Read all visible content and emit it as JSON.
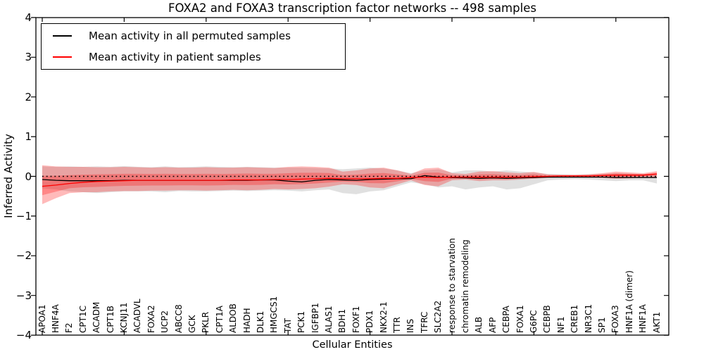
{
  "title": "FOXA2 and FOXA3 transcription factor networks -- 498 samples",
  "legend": {
    "items": [
      {
        "label": "Mean activity in all permuted samples",
        "color": "#000000"
      },
      {
        "label": "Mean activity in patient samples",
        "color": "#ff0000"
      }
    ]
  },
  "axes": {
    "ylabel": "Inferred Activity",
    "xlabel": "Cellular Entities",
    "yticks": [
      "4",
      "3",
      "2",
      "1",
      "0",
      "−1",
      "−2",
      "−3",
      "−4"
    ],
    "ylim": [
      -4,
      4
    ]
  },
  "colors": {
    "background": "#ffffff",
    "axis": "#000000",
    "zero_line": "#000000"
  },
  "chart_data": {
    "type": "line",
    "title": "FOXA2 and FOXA3 transcription factor networks -- 498 samples",
    "xlabel": "Cellular Entities",
    "ylabel": "Inferred Activity",
    "ylim": [
      -4,
      4
    ],
    "grid": false,
    "legend_position": "upper left",
    "zero_reference_line": 0,
    "categories": [
      "APOA1",
      "HNF4A",
      "F2",
      "CPT1C",
      "ACADM",
      "CPT1B",
      "KCNJ11",
      "ACADVL",
      "FOXA2",
      "UCP2",
      "ABCC8",
      "GCK",
      "PKLR",
      "CPT1A",
      "ALDOB",
      "HADH",
      "DLK1",
      "HMGCS1",
      "TAT",
      "PCK1",
      "IGFBP1",
      "ALAS1",
      "BDH1",
      "FOXF1",
      "PDX1",
      "NKX2-1",
      "TTR",
      "INS",
      "TFRC",
      "SLC2A2",
      "response to starvation",
      "chromatin remodeling",
      "ALB",
      "AFP",
      "CEBPA",
      "FOXA1",
      "G6PC",
      "CEBPB",
      "NF1",
      "CREB1",
      "NR3C1",
      "SP1",
      "FOXA3",
      "HNF1A (dimer)",
      "HNF1A",
      "AKT1"
    ],
    "series": [
      {
        "name": "Mean activity in all permuted samples",
        "color": "#000000",
        "style": "solid",
        "values": [
          -0.08,
          -0.1,
          -0.11,
          -0.11,
          -0.11,
          -0.11,
          -0.1,
          -0.1,
          -0.1,
          -0.1,
          -0.1,
          -0.1,
          -0.1,
          -0.1,
          -0.1,
          -0.1,
          -0.09,
          -0.09,
          -0.12,
          -0.14,
          -0.1,
          -0.08,
          -0.09,
          -0.1,
          -0.08,
          -0.07,
          -0.06,
          -0.06,
          0.02,
          -0.02,
          -0.03,
          -0.04,
          -0.05,
          -0.04,
          -0.05,
          -0.04,
          -0.03,
          -0.02,
          -0.02,
          -0.02,
          -0.02,
          -0.02,
          -0.03,
          -0.03,
          -0.03,
          -0.03
        ]
      },
      {
        "name": "Mean activity in patient samples",
        "color": "#ff0000",
        "style": "solid",
        "values": [
          -0.25,
          -0.22,
          -0.18,
          -0.15,
          -0.13,
          -0.12,
          -0.11,
          -0.1,
          -0.1,
          -0.1,
          -0.1,
          -0.1,
          -0.1,
          -0.1,
          -0.09,
          -0.09,
          -0.09,
          -0.08,
          -0.08,
          -0.07,
          -0.06,
          -0.05,
          -0.06,
          -0.06,
          -0.06,
          -0.05,
          -0.05,
          -0.03,
          -0.02,
          -0.03,
          -0.02,
          -0.02,
          -0.02,
          -0.02,
          -0.02,
          -0.02,
          -0.01,
          0.0,
          0.01,
          0.01,
          0.01,
          0.02,
          0.03,
          0.03,
          0.03,
          0.06
        ]
      }
    ],
    "bands": [
      {
        "name": "permuted-samples-std-band",
        "color": "#999999",
        "opacity": 0.3,
        "upper": [
          0.25,
          0.24,
          0.25,
          0.24,
          0.25,
          0.24,
          0.26,
          0.24,
          0.23,
          0.25,
          0.23,
          0.24,
          0.25,
          0.24,
          0.23,
          0.24,
          0.23,
          0.22,
          0.22,
          0.22,
          0.21,
          0.2,
          0.18,
          0.2,
          0.22,
          0.2,
          0.15,
          0.08,
          0.15,
          0.18,
          0.1,
          0.15,
          0.15,
          0.12,
          0.15,
          0.12,
          0.1,
          0.06,
          0.05,
          0.04,
          0.05,
          0.06,
          0.08,
          0.07,
          0.06,
          0.05
        ],
        "lower": [
          -0.3,
          -0.33,
          -0.38,
          -0.4,
          -0.42,
          -0.4,
          -0.38,
          -0.38,
          -0.38,
          -0.4,
          -0.37,
          -0.38,
          -0.38,
          -0.37,
          -0.36,
          -0.37,
          -0.36,
          -0.35,
          -0.36,
          -0.38,
          -0.35,
          -0.33,
          -0.42,
          -0.45,
          -0.38,
          -0.35,
          -0.25,
          -0.15,
          -0.2,
          -0.28,
          -0.25,
          -0.33,
          -0.28,
          -0.25,
          -0.33,
          -0.3,
          -0.2,
          -0.1,
          -0.08,
          -0.07,
          -0.08,
          -0.1,
          -0.12,
          -0.1,
          -0.1,
          -0.18
        ]
      },
      {
        "name": "patient-samples-std-band",
        "color": "#ff0000",
        "opacity": 0.27,
        "upper": [
          0.28,
          0.25,
          0.24,
          0.24,
          0.23,
          0.23,
          0.24,
          0.23,
          0.22,
          0.23,
          0.22,
          0.22,
          0.23,
          0.22,
          0.22,
          0.23,
          0.22,
          0.21,
          0.24,
          0.25,
          0.24,
          0.22,
          0.12,
          0.15,
          0.2,
          0.22,
          0.15,
          0.06,
          0.2,
          0.22,
          0.08,
          0.06,
          0.12,
          0.13,
          0.1,
          0.08,
          0.11,
          0.05,
          0.04,
          0.04,
          0.05,
          0.08,
          0.12,
          0.1,
          0.08,
          0.13
        ],
        "lower": [
          -0.7,
          -0.55,
          -0.42,
          -0.4,
          -0.4,
          -0.38,
          -0.37,
          -0.37,
          -0.36,
          -0.36,
          -0.35,
          -0.35,
          -0.36,
          -0.35,
          -0.34,
          -0.35,
          -0.34,
          -0.32,
          -0.33,
          -0.32,
          -0.3,
          -0.26,
          -0.2,
          -0.22,
          -0.28,
          -0.3,
          -0.2,
          -0.1,
          -0.22,
          -0.25,
          -0.1,
          -0.08,
          -0.12,
          -0.1,
          -0.1,
          -0.08,
          -0.06,
          -0.04,
          -0.03,
          -0.03,
          -0.03,
          -0.04,
          -0.06,
          -0.05,
          -0.03,
          -0.02
        ]
      }
    ]
  }
}
